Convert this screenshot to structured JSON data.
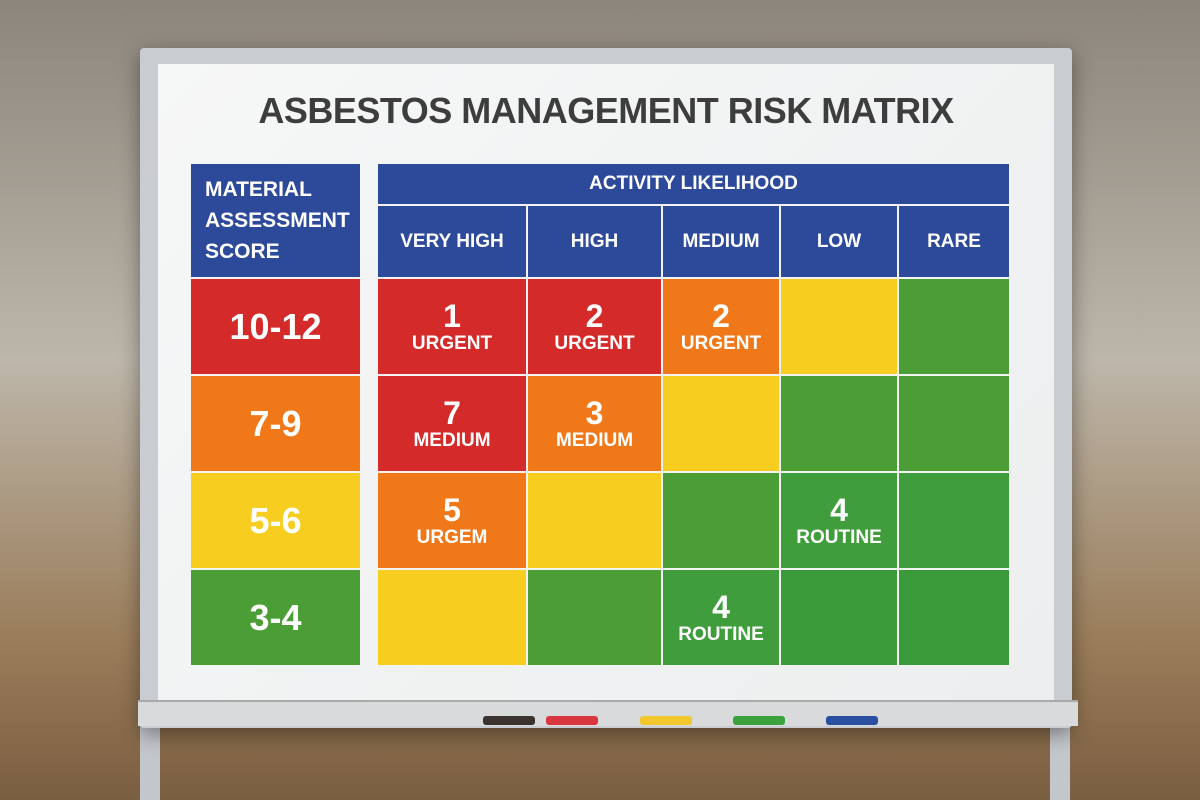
{
  "title": "ASBESTOS MANAGEMENT RISK MATRIX",
  "row_header": "MATERIAL ASSESSMENT SCORE",
  "column_group": "ACTIVITY LIKELIHOOD",
  "header_color": "#2d4a9a",
  "columns": [
    "VERY HIGH",
    "HIGH",
    "MEDIUM",
    "LOW",
    "RARE"
  ],
  "rows": [
    {
      "score": "10-12",
      "color": "#d42a2a",
      "cells": [
        {
          "color": "#d42a2a",
          "number": "1",
          "label": "URGENT"
        },
        {
          "color": "#d42a2a",
          "number": "2",
          "label": "URGENT"
        },
        {
          "color": "#f07818",
          "number": "2",
          "label": "URGENT"
        },
        {
          "color": "#f7cd1f"
        },
        {
          "color": "#4a9e35"
        }
      ]
    },
    {
      "score": "7-9",
      "color": "#f07818",
      "cells": [
        {
          "color": "#d42a2a",
          "number": "7",
          "label": "MEDIUM"
        },
        {
          "color": "#f07818",
          "number": "3",
          "label": "MEDIUM"
        },
        {
          "color": "#f7cd1f"
        },
        {
          "color": "#4a9e35"
        },
        {
          "color": "#4a9e35"
        }
      ]
    },
    {
      "score": "5-6",
      "color": "#f7cd1f",
      "cells": [
        {
          "color": "#f07818",
          "number": "5",
          "label": "URGEM"
        },
        {
          "color": "#f7cd1f"
        },
        {
          "color": "#4a9e35"
        },
        {
          "color": "#3f9d3c",
          "number": "4",
          "label": "ROUTINE"
        },
        {
          "color": "#3f9d3c"
        }
      ]
    },
    {
      "score": "3-4",
      "color": "#4a9e35",
      "cells": [
        {
          "color": "#f7cd1f"
        },
        {
          "color": "#4a9e35"
        },
        {
          "color": "#3f9d3c",
          "number": "4",
          "label": "ROUTINE"
        },
        {
          "color": "#3a9a3a"
        },
        {
          "color": "#3a9a3a"
        }
      ]
    }
  ]
}
